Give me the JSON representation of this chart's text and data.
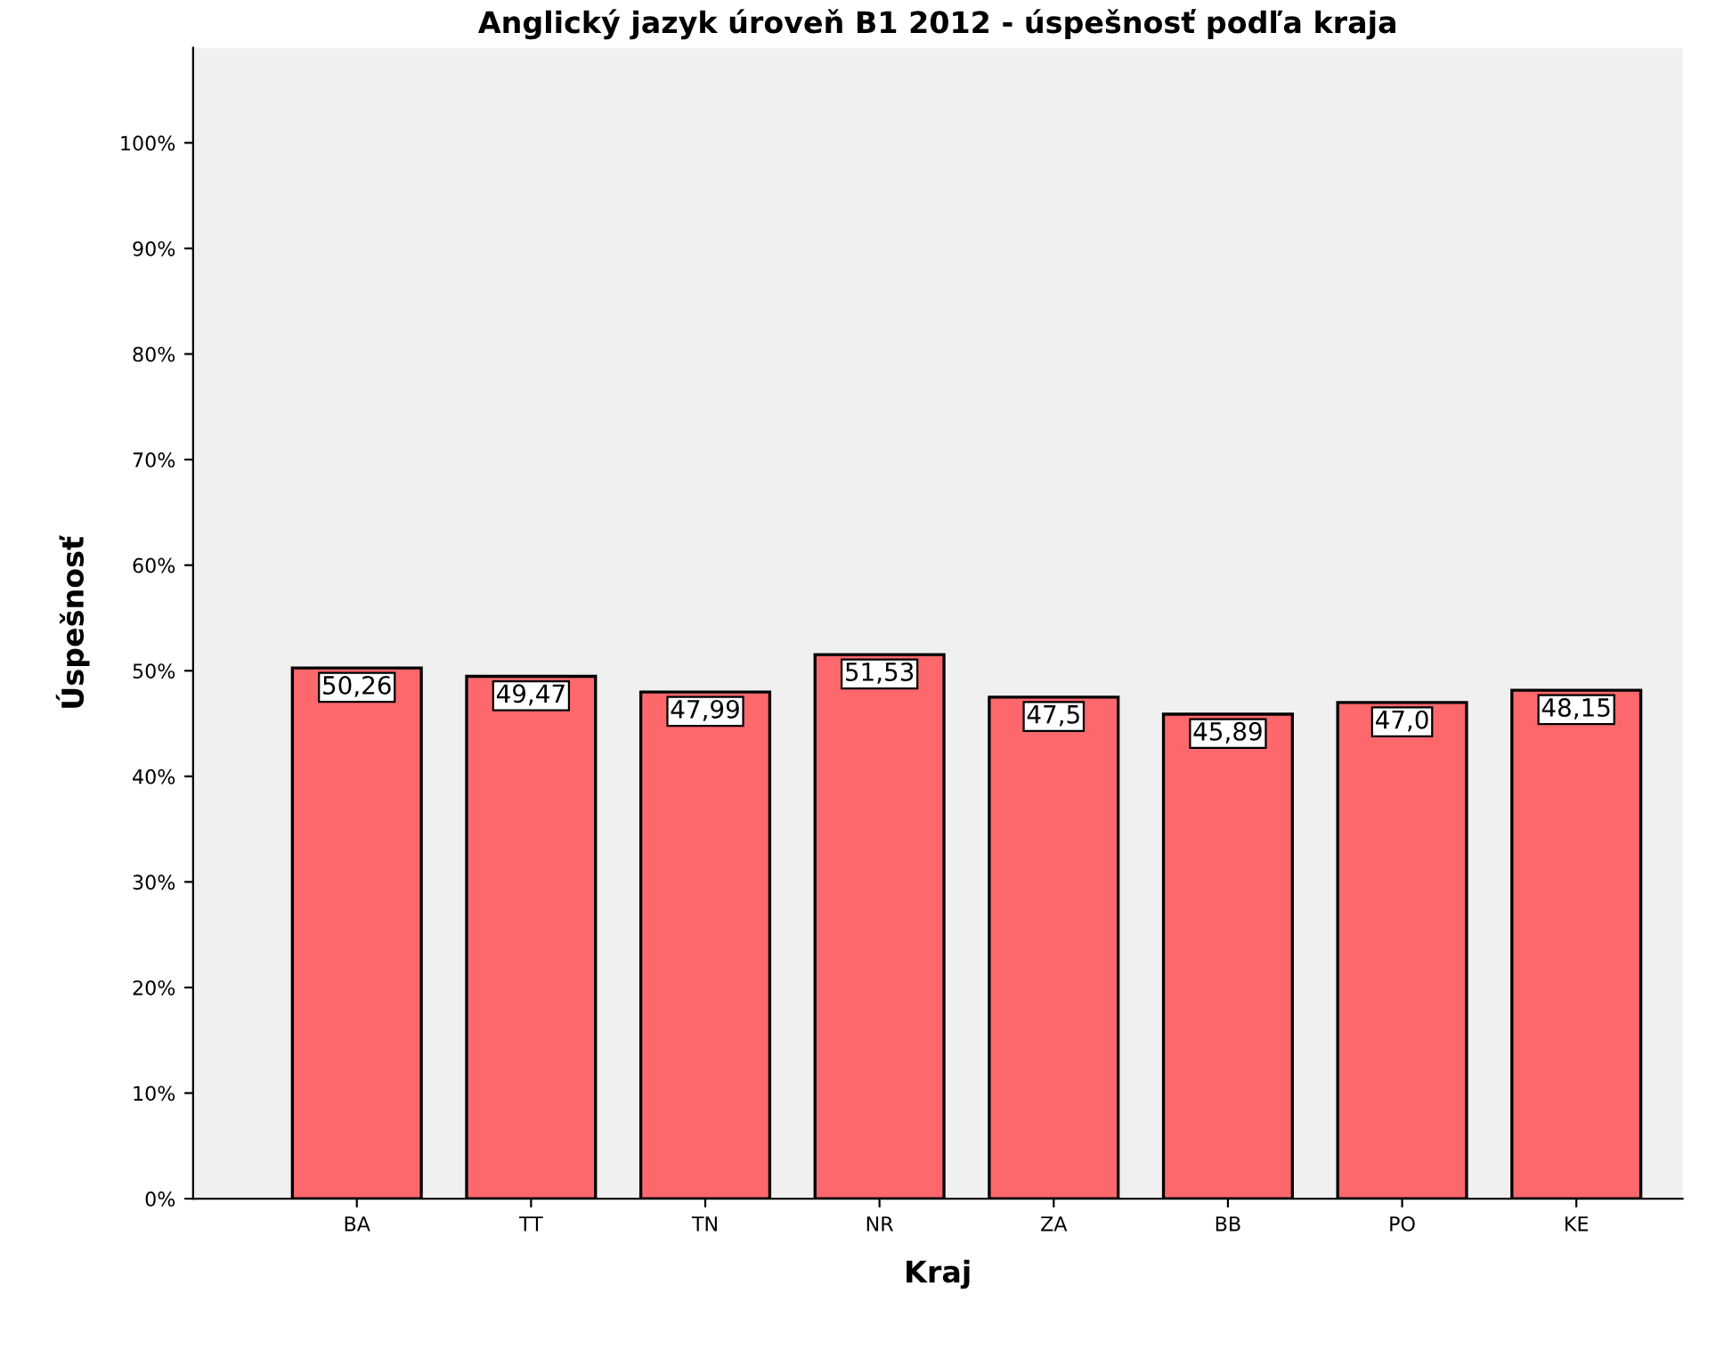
{
  "chart_data": {
    "type": "bar",
    "title": "Anglický jazyk úroveň B1 2012 - úspešnosť podľa kraja",
    "xlabel": "Kraj",
    "ylabel": "Úspešnosť",
    "categories": [
      "BA",
      "TT",
      "TN",
      "NR",
      "ZA",
      "BB",
      "PO",
      "KE"
    ],
    "values": [
      50.26,
      49.47,
      47.99,
      51.53,
      47.5,
      45.89,
      47.0,
      48.15
    ],
    "value_labels": [
      "50,26",
      "49,47",
      "47,99",
      "51,53",
      "47,5",
      "45,89",
      "47,0",
      "48,15"
    ],
    "color": "#fc686c",
    "ylim": [
      0,
      109
    ],
    "yticks": [
      {
        "value": 0,
        "label": "0%"
      },
      {
        "value": 10,
        "label": "10%"
      },
      {
        "value": 20,
        "label": "20%"
      },
      {
        "value": 30,
        "label": "30%"
      },
      {
        "value": 40,
        "label": "40%"
      },
      {
        "value": 50,
        "label": "50%"
      },
      {
        "value": 60,
        "label": "60%"
      },
      {
        "value": 70,
        "label": "70%"
      },
      {
        "value": 80,
        "label": "80%"
      },
      {
        "value": 90,
        "label": "90%"
      },
      {
        "value": 100,
        "label": "100%"
      }
    ],
    "grid": false,
    "legend": false
  }
}
